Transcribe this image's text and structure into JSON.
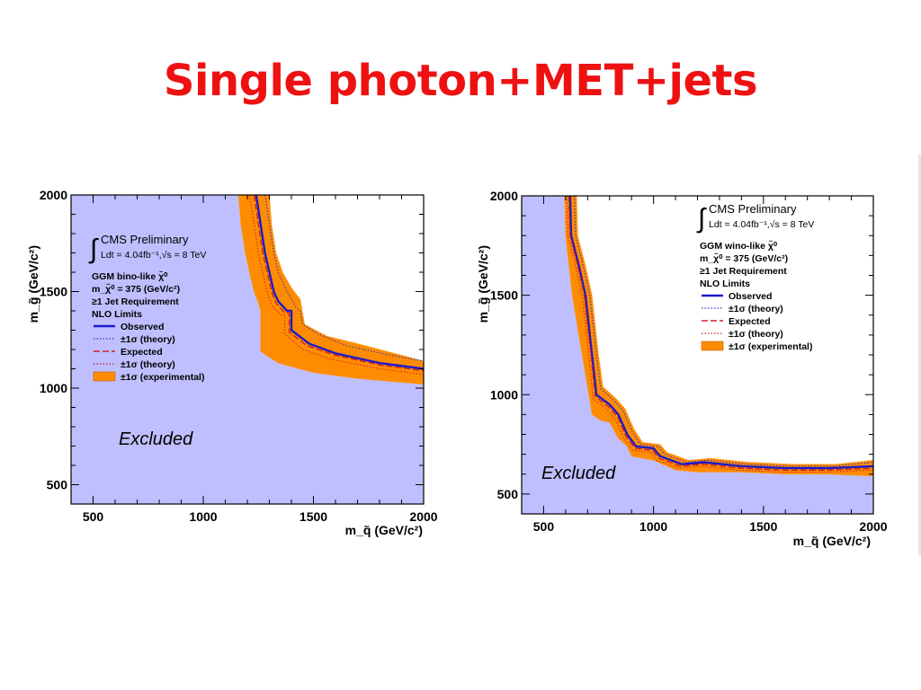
{
  "slide": {
    "title": "Single photon+MET+jets"
  },
  "colors": {
    "title": "#ee1111",
    "excluded_fill": "#bfbfff",
    "band_experimental": "#ff8c00",
    "observed": "#1a1acc",
    "theory": "#3333cc",
    "expected": "#cc2222"
  },
  "chart_data": [
    {
      "type": "line",
      "title": "",
      "xlabel": "m_q̃ (GeV/c²)",
      "ylabel": "m_g̃ (GeV/c²)",
      "xlim": [
        400,
        2000
      ],
      "ylim": [
        400,
        2000
      ],
      "xticks": [
        500,
        1000,
        1500,
        2000
      ],
      "yticks": [
        500,
        1000,
        1500,
        2000
      ],
      "grid": false,
      "legend_position": "top-left",
      "header": "CMS Preliminary",
      "lumi": "Ldt = 4.04fb⁻¹,√s = 8 TeV",
      "info_lines": [
        "GGM bino-like χ̃⁰",
        "m_χ̃⁰ = 375 (GeV/c²)",
        "≥1 Jet Requirement",
        "NLO Limits"
      ],
      "legend": [
        "Observed",
        "±1σ (theory)",
        "Expected",
        "±1σ (theory)",
        "±1σ (experimental)"
      ],
      "region_label": "Excluded",
      "series": [
        {
          "name": "Observed",
          "style": "solid",
          "x": [
            1240,
            1260,
            1280,
            1300,
            1320,
            1340,
            1380,
            1400,
            1400,
            1480,
            1600,
            1800,
            2000
          ],
          "y": [
            2000,
            1850,
            1700,
            1600,
            1500,
            1450,
            1400,
            1400,
            1300,
            1230,
            1180,
            1130,
            1100
          ]
        },
        {
          "name": "±1σ (theory)",
          "style": "dotted",
          "x": [
            1280,
            1300,
            1320,
            1340,
            1380,
            1420,
            1440,
            1450,
            1520,
            1650,
            1850,
            2000
          ],
          "y": [
            2000,
            1850,
            1700,
            1600,
            1500,
            1420,
            1400,
            1330,
            1280,
            1220,
            1170,
            1140
          ]
        },
        {
          "name": "Expected",
          "style": "dashed",
          "x": [
            1230,
            1250,
            1270,
            1290,
            1310,
            1330,
            1370,
            1390,
            1390,
            1470,
            1600,
            1800,
            2000
          ],
          "y": [
            2000,
            1850,
            1700,
            1600,
            1500,
            1440,
            1390,
            1390,
            1290,
            1220,
            1170,
            1120,
            1090
          ]
        },
        {
          "name": "±1σ (theory)",
          "style": "dotted",
          "x": [
            1210,
            1230,
            1250,
            1270,
            1290,
            1310,
            1350,
            1370,
            1370,
            1450,
            1580,
            1800,
            2000
          ],
          "y": [
            2000,
            1850,
            1700,
            1600,
            1500,
            1430,
            1380,
            1380,
            1280,
            1200,
            1150,
            1100,
            1070
          ]
        }
      ],
      "band_experimental": {
        "upper": {
          "x": [
            1300,
            1310,
            1330,
            1360,
            1400,
            1440,
            1460,
            1560,
            1700,
            1900,
            2000
          ],
          "y": [
            2000,
            1850,
            1700,
            1600,
            1520,
            1460,
            1330,
            1270,
            1230,
            1170,
            1140
          ]
        },
        "lower": {
          "x": [
            1160,
            1170,
            1190,
            1210,
            1230,
            1250,
            1260,
            1260,
            1300,
            1340,
            1500,
            1700,
            1900,
            2000
          ],
          "y": [
            2000,
            1850,
            1700,
            1600,
            1500,
            1440,
            1400,
            1190,
            1160,
            1130,
            1080,
            1050,
            1030,
            1020
          ]
        }
      }
    },
    {
      "type": "line",
      "title": "",
      "xlabel": "m_q̃ (GeV/c²)",
      "ylabel": "m_g̃ (GeV/c²)",
      "xlim": [
        400,
        2000
      ],
      "ylim": [
        400,
        2000
      ],
      "xticks": [
        500,
        1000,
        1500,
        2000
      ],
      "yticks": [
        500,
        1000,
        1500,
        2000
      ],
      "grid": false,
      "legend_position": "top-right",
      "header": "CMS Preliminary",
      "lumi": "Ldt = 4.04fb⁻¹,√s = 8 TeV",
      "info_lines": [
        "GGM wino-like χ̃⁰",
        "m_χ̃⁰ = 375 (GeV/c²)",
        "≥1 Jet Requirement",
        "NLO Limits"
      ],
      "legend": [
        "Observed",
        "±1σ (theory)",
        "Expected",
        "±1σ (theory)",
        "±1σ (experimental)"
      ],
      "region_label": "Excluded",
      "series": [
        {
          "name": "Observed",
          "style": "solid",
          "x": [
            620,
            625,
            660,
            690,
            720,
            740,
            800,
            840,
            880,
            920,
            1000,
            1030,
            1130,
            1230,
            1400,
            1600,
            1800,
            2000
          ],
          "y": [
            2000,
            1800,
            1650,
            1500,
            1200,
            1000,
            950,
            900,
            800,
            740,
            730,
            690,
            650,
            660,
            640,
            630,
            630,
            640
          ]
        },
        {
          "name": "±1σ (theory)",
          "style": "dotted",
          "x": [
            640,
            645,
            680,
            710,
            740,
            760,
            820,
            860,
            900,
            940,
            1020,
            1050,
            1150,
            1250,
            1420,
            1620,
            1820,
            2000
          ],
          "y": [
            2000,
            1800,
            1650,
            1500,
            1200,
            1030,
            970,
            920,
            820,
            750,
            740,
            700,
            660,
            670,
            650,
            640,
            640,
            660
          ]
        },
        {
          "name": "Expected",
          "style": "dashed",
          "x": [
            615,
            620,
            655,
            685,
            715,
            735,
            795,
            835,
            875,
            915,
            995,
            1025,
            1125,
            1225,
            1395,
            1595,
            1795,
            2000
          ],
          "y": [
            2000,
            1800,
            1650,
            1500,
            1200,
            990,
            940,
            890,
            790,
            730,
            720,
            680,
            640,
            650,
            630,
            620,
            620,
            630
          ]
        },
        {
          "name": "±1σ (theory)",
          "style": "dotted",
          "x": [
            605,
            610,
            645,
            675,
            705,
            725,
            785,
            825,
            865,
            905,
            985,
            1015,
            1115,
            1215,
            1385,
            1585,
            1785,
            2000
          ],
          "y": [
            2000,
            1800,
            1650,
            1500,
            1200,
            980,
            930,
            880,
            780,
            720,
            710,
            670,
            630,
            640,
            620,
            610,
            610,
            620
          ]
        }
      ],
      "band_experimental": {
        "upper": {
          "x": [
            650,
            655,
            690,
            720,
            750,
            770,
            830,
            870,
            910,
            950,
            1030,
            1060,
            1160,
            1260,
            1430,
            1630,
            1830,
            2000
          ],
          "y": [
            2000,
            1800,
            1650,
            1500,
            1200,
            1040,
            980,
            930,
            830,
            760,
            750,
            710,
            670,
            680,
            660,
            650,
            650,
            670
          ]
        },
        "lower": {
          "x": [
            2000,
            1800,
            1600,
            1400,
            1200,
            1100,
            1000,
            900,
            880,
            840,
            800,
            760,
            720,
            690,
            660,
            630,
            600,
            595
          ],
          "y": [
            590,
            600,
            600,
            610,
            610,
            620,
            670,
            690,
            740,
            780,
            860,
            870,
            900,
            1100,
            1300,
            1500,
            1800,
            2000
          ]
        }
      }
    }
  ]
}
